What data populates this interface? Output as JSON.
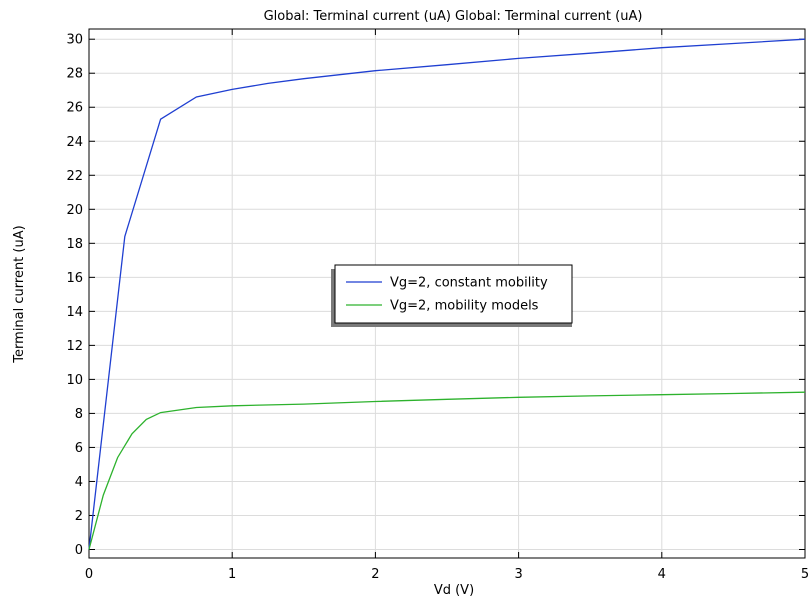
{
  "chart_data": {
    "type": "line",
    "title": "Global: Terminal current (uA)  Global: Terminal current (uA)",
    "xlabel": "Vd (V)",
    "ylabel": "Terminal current (uA)",
    "xlim": [
      0,
      5
    ],
    "ylim": [
      -0.5,
      30.6
    ],
    "xticks": [
      0,
      1,
      2,
      3,
      4,
      5
    ],
    "yticks": [
      0,
      2,
      4,
      6,
      8,
      10,
      12,
      14,
      16,
      18,
      20,
      22,
      24,
      26,
      28,
      30
    ],
    "grid": true,
    "legend_position": "center",
    "series": [
      {
        "name": "Vg=2, constant mobility",
        "color": "#1f3fd1",
        "x": [
          0,
          0.25,
          0.5,
          0.75,
          1,
          1.25,
          1.5,
          2,
          2.5,
          3,
          3.5,
          4,
          4.5,
          5
        ],
        "y": [
          0,
          18.4,
          25.3,
          26.6,
          27.05,
          27.4,
          27.68,
          28.15,
          28.5,
          28.87,
          29.18,
          29.5,
          29.75,
          30.0
        ]
      },
      {
        "name": "Vg=2, mobility models",
        "color": "#2db22d",
        "x": [
          0,
          0.1,
          0.2,
          0.3,
          0.4,
          0.5,
          0.75,
          1,
          1.5,
          2,
          2.5,
          3,
          3.5,
          4,
          4.5,
          5
        ],
        "y": [
          0,
          3.2,
          5.4,
          6.8,
          7.65,
          8.05,
          8.35,
          8.45,
          8.55,
          8.7,
          8.83,
          8.95,
          9.03,
          9.1,
          9.17,
          9.25
        ]
      }
    ]
  }
}
